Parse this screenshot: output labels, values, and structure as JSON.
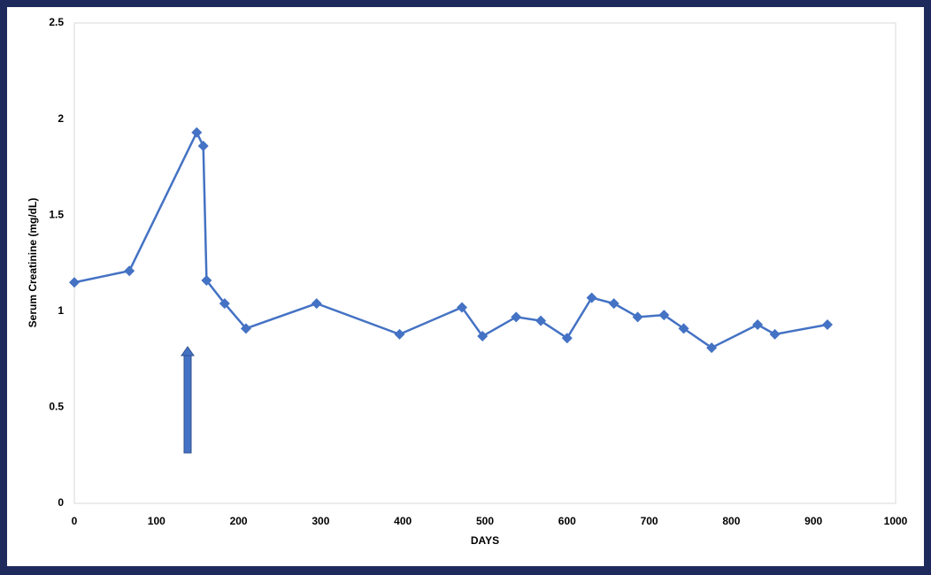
{
  "chart_data": {
    "type": "line",
    "x_label": "DAYS",
    "y_label": "Serum Creatinine (mg/dL)",
    "x": [
      0,
      67,
      149,
      157,
      161,
      183,
      209,
      295,
      396,
      472,
      497,
      538,
      568,
      600,
      630,
      657,
      686,
      718,
      742,
      776,
      832,
      853,
      917
    ],
    "values": [
      1.15,
      1.21,
      1.93,
      1.86,
      1.16,
      1.04,
      0.91,
      1.04,
      0.88,
      1.02,
      0.87,
      0.97,
      0.95,
      0.86,
      1.07,
      1.04,
      0.97,
      0.98,
      0.91,
      0.81,
      0.93,
      0.88,
      0.93
    ],
    "color": "#4472c4",
    "xlim": [
      0,
      1000
    ],
    "xticks": [
      0,
      100,
      200,
      300,
      400,
      500,
      600,
      700,
      800,
      900,
      1000
    ],
    "ylim": [
      0,
      2.5
    ],
    "yticks": [
      0,
      0.5,
      1,
      1.5,
      2,
      2.5
    ],
    "grid": false
  }
}
